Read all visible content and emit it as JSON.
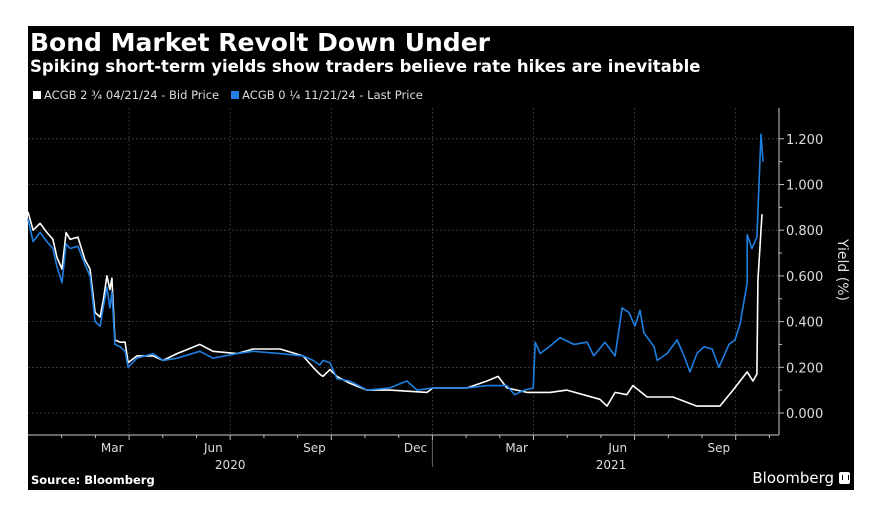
{
  "chart_data": {
    "type": "line",
    "title": "Bond Market Revolt Down Under",
    "subtitle": "Spiking short-term yields show traders believe rate hikes are inevitable",
    "ylabel": "Yield (%)",
    "xlabel": "",
    "x_unit": "months since 2020-01-01",
    "xlim": [
      0,
      22.3
    ],
    "ylim": [
      -0.1,
      1.3
    ],
    "y_ticks": [
      0,
      0.2,
      0.4,
      0.6,
      0.8,
      1.0,
      1.2
    ],
    "y_tick_labels": [
      "0.000",
      "0.200",
      "0.400",
      "0.600",
      "0.800",
      "1.000",
      "1.200"
    ],
    "x_tick_labels": [
      {
        "label": "Mar",
        "t": 2.5
      },
      {
        "label": "Jun",
        "t": 5.5
      },
      {
        "label": "Sep",
        "t": 8.5
      },
      {
        "label": "Dec",
        "t": 11.5
      },
      {
        "label": "Mar",
        "t": 14.5
      },
      {
        "label": "Jun",
        "t": 17.5
      },
      {
        "label": "Sep",
        "t": 20.5
      }
    ],
    "year_labels": [
      {
        "label": "2020",
        "t": 6.0
      },
      {
        "label": "2021",
        "t": 17.3
      }
    ],
    "grid_x": [
      3,
      6,
      9,
      12,
      15,
      18,
      21
    ],
    "grid": true,
    "legend_position": "top-left",
    "series": [
      {
        "name": "ACGB 2 ¾  04/21/24 - Bid Price",
        "color": "#ffffff",
        "points": [
          [
            0,
            0.88
          ],
          [
            0.15,
            0.8
          ],
          [
            0.36,
            0.83
          ],
          [
            0.56,
            0.79
          ],
          [
            0.74,
            0.76
          ],
          [
            0.86,
            0.68
          ],
          [
            1.01,
            0.63
          ],
          [
            1.13,
            0.79
          ],
          [
            1.25,
            0.76
          ],
          [
            1.48,
            0.77
          ],
          [
            1.69,
            0.67
          ],
          [
            1.84,
            0.63
          ],
          [
            1.99,
            0.44
          ],
          [
            2.14,
            0.42
          ],
          [
            2.23,
            0.49
          ],
          [
            2.34,
            0.6
          ],
          [
            2.43,
            0.54
          ],
          [
            2.49,
            0.59
          ],
          [
            2.58,
            0.32
          ],
          [
            2.73,
            0.31
          ],
          [
            2.88,
            0.31
          ],
          [
            2.97,
            0.22
          ],
          [
            3.23,
            0.25
          ],
          [
            3.71,
            0.25
          ],
          [
            4.01,
            0.23
          ],
          [
            4.42,
            0.26
          ],
          [
            5.1,
            0.3
          ],
          [
            5.49,
            0.27
          ],
          [
            6.2,
            0.26
          ],
          [
            6.68,
            0.28
          ],
          [
            7.48,
            0.28
          ],
          [
            8.16,
            0.25
          ],
          [
            8.46,
            0.2
          ],
          [
            8.66,
            0.17
          ],
          [
            8.75,
            0.16
          ],
          [
            8.96,
            0.19
          ],
          [
            9.17,
            0.16
          ],
          [
            9.55,
            0.13
          ],
          [
            10.06,
            0.1
          ],
          [
            10.74,
            0.1
          ],
          [
            11.84,
            0.09
          ],
          [
            12.02,
            0.11
          ],
          [
            13.03,
            0.11
          ],
          [
            13.62,
            0.14
          ],
          [
            13.95,
            0.16
          ],
          [
            14.21,
            0.11
          ],
          [
            14.81,
            0.09
          ],
          [
            15.49,
            0.09
          ],
          [
            15.99,
            0.1
          ],
          [
            16.97,
            0.06
          ],
          [
            17.18,
            0.03
          ],
          [
            17.42,
            0.09
          ],
          [
            17.77,
            0.08
          ],
          [
            17.95,
            0.12
          ],
          [
            18.37,
            0.07
          ],
          [
            19.14,
            0.07
          ],
          [
            19.85,
            0.03
          ],
          [
            20.53,
            0.03
          ],
          [
            20.92,
            0.1
          ],
          [
            21.34,
            0.18
          ],
          [
            21.51,
            0.14
          ],
          [
            21.63,
            0.17
          ],
          [
            21.66,
            0.58
          ],
          [
            21.78,
            0.87
          ]
        ]
      },
      {
        "name": "ACGB 0 ¼  11/21/24 - Last Price",
        "color": "#1e7fe0",
        "points": [
          [
            0,
            0.85
          ],
          [
            0.15,
            0.75
          ],
          [
            0.36,
            0.79
          ],
          [
            0.56,
            0.75
          ],
          [
            0.74,
            0.72
          ],
          [
            0.86,
            0.64
          ],
          [
            1.01,
            0.57
          ],
          [
            1.13,
            0.74
          ],
          [
            1.25,
            0.72
          ],
          [
            1.48,
            0.73
          ],
          [
            1.69,
            0.65
          ],
          [
            1.84,
            0.6
          ],
          [
            1.99,
            0.4
          ],
          [
            2.14,
            0.38
          ],
          [
            2.23,
            0.46
          ],
          [
            2.34,
            0.55
          ],
          [
            2.43,
            0.46
          ],
          [
            2.49,
            0.53
          ],
          [
            2.58,
            0.3
          ],
          [
            2.73,
            0.29
          ],
          [
            2.88,
            0.27
          ],
          [
            2.97,
            0.2
          ],
          [
            3.23,
            0.24
          ],
          [
            3.71,
            0.26
          ],
          [
            4.01,
            0.23
          ],
          [
            4.42,
            0.24
          ],
          [
            5.1,
            0.27
          ],
          [
            5.49,
            0.24
          ],
          [
            6.2,
            0.26
          ],
          [
            6.68,
            0.27
          ],
          [
            7.48,
            0.26
          ],
          [
            8.16,
            0.25
          ],
          [
            8.46,
            0.23
          ],
          [
            8.66,
            0.21
          ],
          [
            8.75,
            0.23
          ],
          [
            8.96,
            0.22
          ],
          [
            9.17,
            0.15
          ],
          [
            9.55,
            0.14
          ],
          [
            10.06,
            0.1
          ],
          [
            10.74,
            0.11
          ],
          [
            11.24,
            0.14
          ],
          [
            11.55,
            0.1
          ],
          [
            12.02,
            0.11
          ],
          [
            13.03,
            0.11
          ],
          [
            13.62,
            0.12
          ],
          [
            14.21,
            0.12
          ],
          [
            14.44,
            0.08
          ],
          [
            14.73,
            0.1
          ],
          [
            14.99,
            0.11
          ],
          [
            15.05,
            0.31
          ],
          [
            15.2,
            0.26
          ],
          [
            15.55,
            0.3
          ],
          [
            15.79,
            0.33
          ],
          [
            16.2,
            0.3
          ],
          [
            16.59,
            0.31
          ],
          [
            16.79,
            0.25
          ],
          [
            17.12,
            0.31
          ],
          [
            17.42,
            0.25
          ],
          [
            17.63,
            0.46
          ],
          [
            17.83,
            0.44
          ],
          [
            18.01,
            0.38
          ],
          [
            18.16,
            0.45
          ],
          [
            18.28,
            0.35
          ],
          [
            18.58,
            0.29
          ],
          [
            18.67,
            0.23
          ],
          [
            18.96,
            0.26
          ],
          [
            19.26,
            0.32
          ],
          [
            19.47,
            0.25
          ],
          [
            19.64,
            0.18
          ],
          [
            19.85,
            0.26
          ],
          [
            20.06,
            0.29
          ],
          [
            20.3,
            0.28
          ],
          [
            20.5,
            0.2
          ],
          [
            20.8,
            0.3
          ],
          [
            20.98,
            0.32
          ],
          [
            21.13,
            0.39
          ],
          [
            21.34,
            0.57
          ],
          [
            21.34,
            0.78
          ],
          [
            21.48,
            0.72
          ],
          [
            21.63,
            0.77
          ],
          [
            21.75,
            1.22
          ],
          [
            21.81,
            1.1
          ]
        ]
      }
    ]
  },
  "source": "Source: Bloomberg",
  "brand": "Bloomberg"
}
